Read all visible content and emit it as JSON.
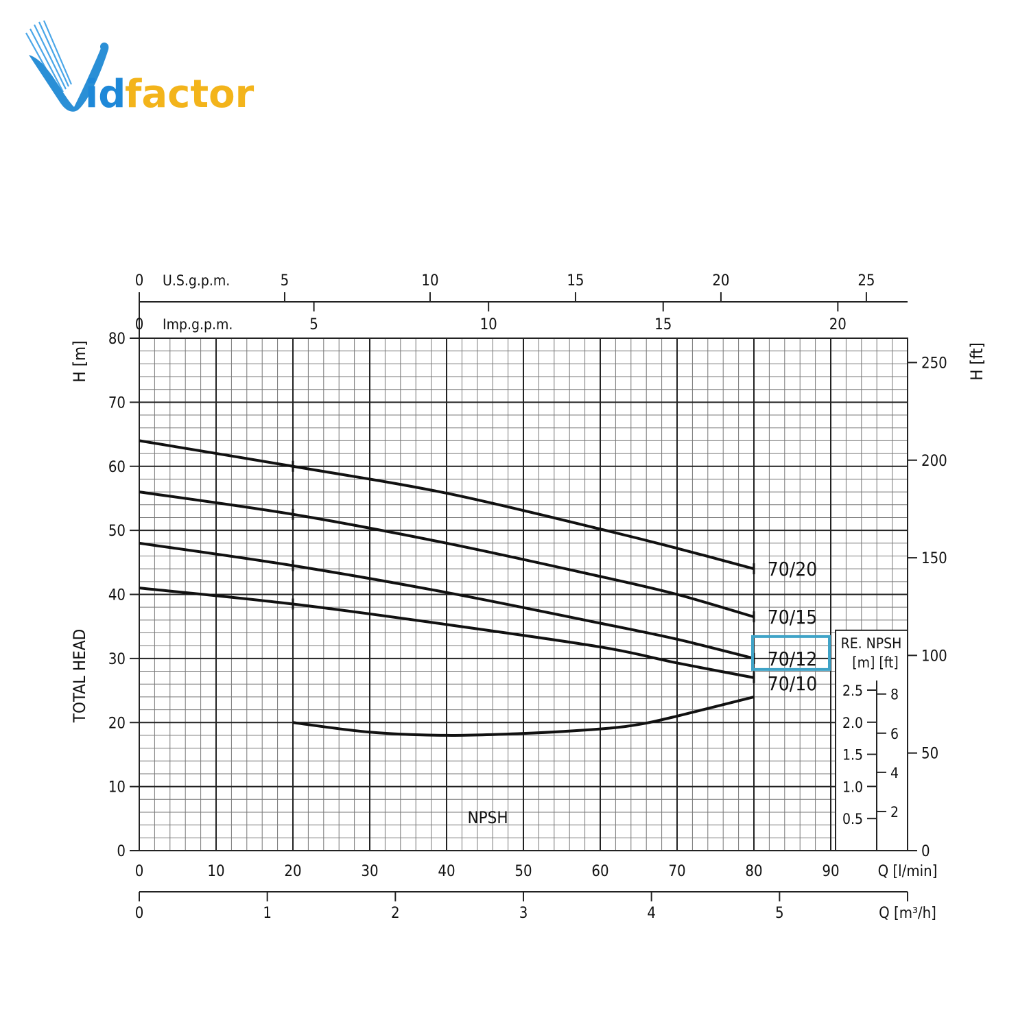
{
  "logo": {
    "text": "Vidfactor",
    "colors": {
      "v": "#2a8fd6",
      "id": "#1e88d8",
      "factor": "#f3b41b"
    }
  },
  "chart_data": {
    "type": "line",
    "x": [
      0,
      10,
      20,
      30,
      40,
      50,
      60,
      70,
      80
    ],
    "xlabel": "Q [l/min]",
    "xlim": [
      0,
      100
    ],
    "ylabel_left": "TOTAL HEAD",
    "ylabel_left_unit": "H [m]",
    "ylabel_right_unit": "H [ft]",
    "ylim": [
      0,
      80
    ],
    "grid": true,
    "x_ticks": [
      "0",
      "10",
      "20",
      "30",
      "40",
      "50",
      "60",
      "70",
      "80",
      "90"
    ],
    "y_ticks": [
      "0",
      "10",
      "20",
      "30",
      "40",
      "50",
      "60",
      "70",
      "80"
    ],
    "right_ft_ticks": [
      {
        "value": 0,
        "label": "0"
      },
      {
        "value": 50,
        "label": "50"
      },
      {
        "value": 100,
        "label": "100"
      },
      {
        "value": 150,
        "label": "150"
      },
      {
        "value": 200,
        "label": "200"
      },
      {
        "value": 250,
        "label": "250"
      }
    ],
    "top_axis_usgpm": {
      "label": "U.S.g.p.m.",
      "ticks": [
        {
          "value": 0,
          "label": "0"
        },
        {
          "value": 5,
          "label": "5"
        },
        {
          "value": 10,
          "label": "10"
        },
        {
          "value": 15,
          "label": "15"
        },
        {
          "value": 20,
          "label": "20"
        },
        {
          "value": 25,
          "label": "25"
        }
      ]
    },
    "top_axis_impgpm": {
      "label": "Imp.g.p.m.",
      "ticks": [
        {
          "value": 0,
          "label": "0"
        },
        {
          "value": 5,
          "label": "5"
        },
        {
          "value": 10,
          "label": "10"
        },
        {
          "value": 15,
          "label": "15"
        },
        {
          "value": 20,
          "label": "20"
        }
      ]
    },
    "bottom_axis_m3h": {
      "label": "Q [m³/h]",
      "ticks": [
        {
          "value": 0,
          "label": "0"
        },
        {
          "value": 1,
          "label": "1"
        },
        {
          "value": 2,
          "label": "2"
        },
        {
          "value": 3,
          "label": "3"
        },
        {
          "value": 4,
          "label": "4"
        },
        {
          "value": 5,
          "label": "5"
        }
      ]
    },
    "series": [
      {
        "name": "70/20",
        "x": [
          0,
          20,
          40,
          60,
          70,
          80
        ],
        "values": [
          64,
          60,
          55.8,
          50.2,
          47.2,
          44
        ]
      },
      {
        "name": "70/15",
        "x": [
          0,
          20,
          40,
          60,
          70,
          80
        ],
        "values": [
          56,
          52.5,
          48,
          42.8,
          40,
          36.5
        ]
      },
      {
        "name": "70/12",
        "x": [
          0,
          20,
          40,
          60,
          70,
          80
        ],
        "values": [
          48,
          44.5,
          40.3,
          35.5,
          33,
          30
        ]
      },
      {
        "name": "70/10",
        "x": [
          0,
          20,
          40,
          60,
          70,
          80
        ],
        "values": [
          41,
          38.5,
          35.3,
          31.8,
          29.3,
          27
        ]
      }
    ],
    "highlighted_series": "70/12",
    "highlight_color": "#3fa3c7",
    "npsh": {
      "label": "NPSH",
      "x": [
        20,
        30,
        40,
        50,
        60,
        65,
        70,
        80
      ],
      "values": [
        2.0,
        1.85,
        1.8,
        1.83,
        1.9,
        1.97,
        2.1,
        2.4
      ],
      "panel_title": "RE. NPSH",
      "panel_units": "[m] [ft]",
      "m_ticks": [
        {
          "value": 0.5,
          "label": "0.5"
        },
        {
          "value": 1.0,
          "label": "1.0"
        },
        {
          "value": 1.5,
          "label": "1.5"
        },
        {
          "value": 2.0,
          "label": "2.0"
        },
        {
          "value": 2.5,
          "label": "2.5"
        }
      ],
      "ft_ticks": [
        {
          "value": 2,
          "label": "2"
        },
        {
          "value": 4,
          "label": "4"
        },
        {
          "value": 6,
          "label": "6"
        },
        {
          "value": 8,
          "label": "8"
        }
      ]
    }
  }
}
